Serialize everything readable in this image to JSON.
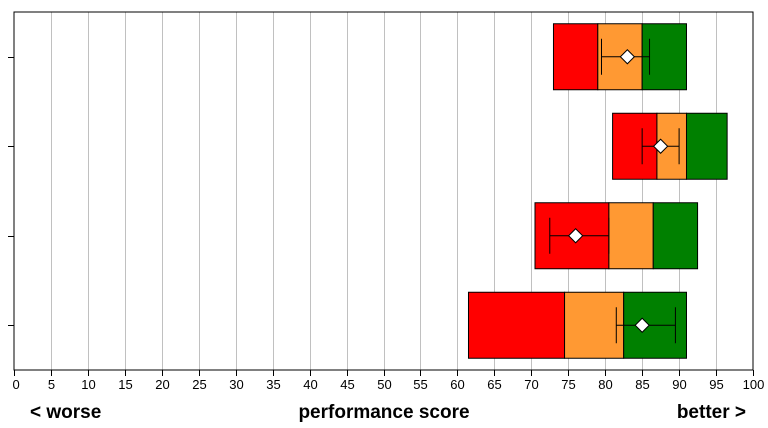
{
  "chart_data": {
    "type": "bar",
    "orientation": "horizontal",
    "xlim": [
      0,
      100
    ],
    "x_ticks": [
      "0",
      "5",
      "10",
      "15",
      "20",
      "25",
      "30",
      "35",
      "40",
      "45",
      "50",
      "55",
      "60",
      "65",
      "70",
      "75",
      "80",
      "85",
      "90",
      "95",
      "100"
    ],
    "grid": true,
    "xlabel": "performance score",
    "left_label": "< worse",
    "right_label": "better >",
    "rows": [
      {
        "bands": [
          73,
          79,
          85,
          91
        ],
        "marker": 83,
        "error": [
          79.5,
          86
        ]
      },
      {
        "bands": [
          81,
          87,
          91,
          96.5
        ],
        "marker": 87.5,
        "error": [
          85,
          90
        ]
      },
      {
        "bands": [
          70.5,
          80.5,
          86.5,
          92.5
        ],
        "marker": 76,
        "error": [
          72.5,
          80.5
        ]
      },
      {
        "bands": [
          61.5,
          74.5,
          82.5,
          91
        ],
        "marker": 85,
        "error": [
          81.5,
          89.5
        ]
      }
    ],
    "band_colors": [
      "#ff0000",
      "#ff9933",
      "#008000"
    ],
    "marker_color": "#ffffff"
  }
}
